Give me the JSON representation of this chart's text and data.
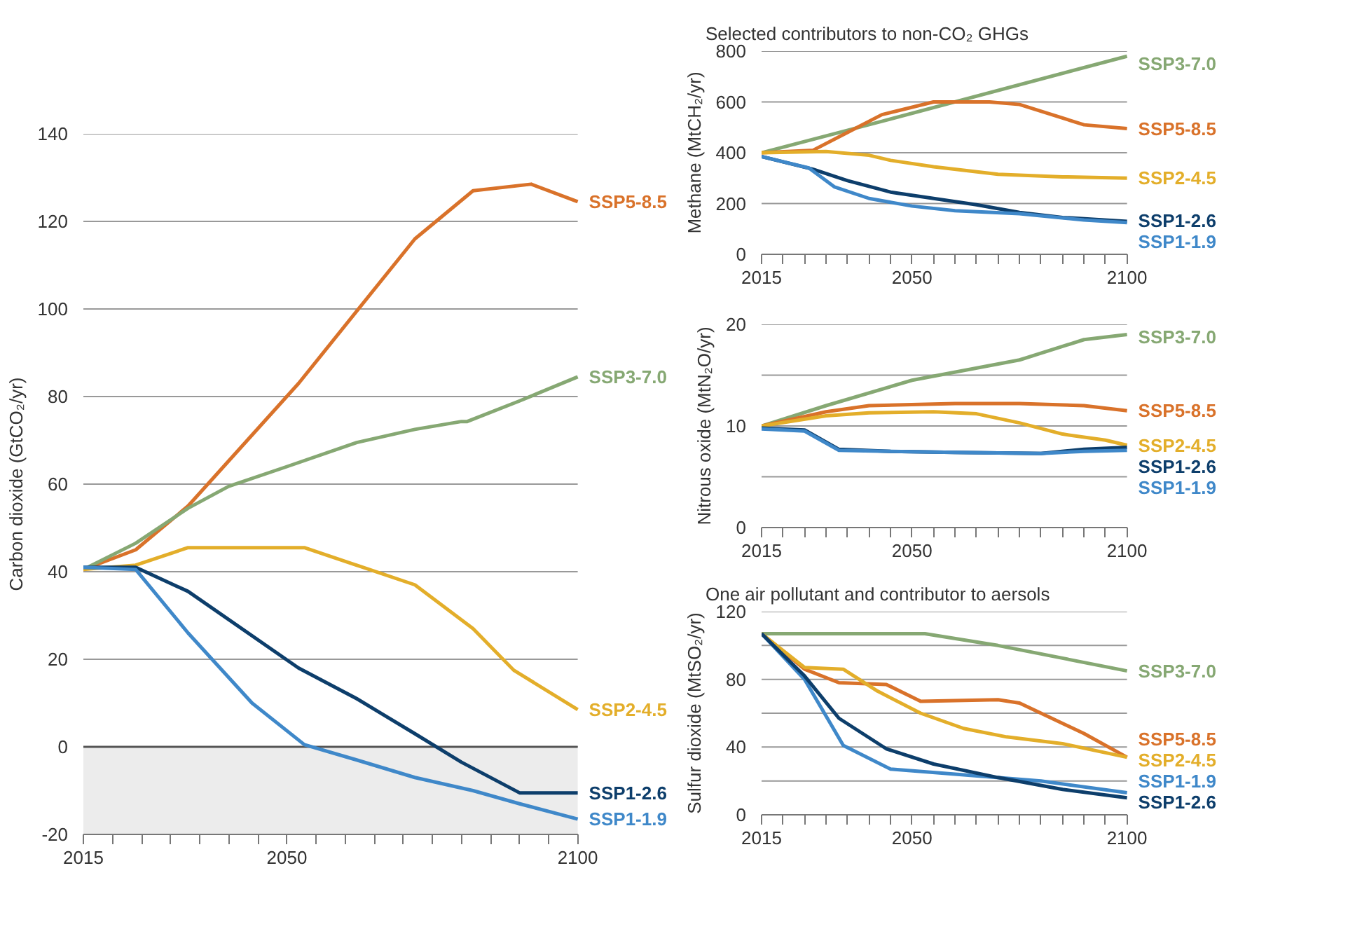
{
  "chart_data": [
    {
      "type": "line",
      "ylabel": "Carbon dioxide (GtCO₂/yr)",
      "xlim": [
        2015,
        2100
      ],
      "ylim": [
        -20,
        140
      ],
      "grid": "y",
      "legend": false,
      "xticks": [
        2015,
        {
          "value": 2020,
          "label": null
        },
        {
          "value": 2025,
          "label": null
        },
        {
          "value": 2030,
          "label": null
        },
        {
          "value": 2035,
          "label": null
        },
        {
          "value": 2040,
          "label": null
        },
        {
          "value": 2045,
          "label": null
        },
        2050,
        {
          "value": 2055,
          "label": null
        },
        {
          "value": 2060,
          "label": null
        },
        {
          "value": 2065,
          "label": null
        },
        {
          "value": 2070,
          "label": null
        },
        {
          "value": 2075,
          "label": null
        },
        {
          "value": 2080,
          "label": null
        },
        {
          "value": 2085,
          "label": null
        },
        {
          "value": 2090,
          "label": null
        },
        {
          "value": 2095,
          "label": null
        },
        2100
      ],
      "yticks": [
        -20,
        0,
        20,
        40,
        60,
        80,
        100,
        120,
        140
      ],
      "bands": [
        {
          "axis": "y",
          "from": -20,
          "to": 0,
          "color": "#ececec"
        }
      ],
      "ref_lines": [
        {
          "axis": "y",
          "value": 0,
          "color": "#555555"
        }
      ],
      "series": [
        {
          "name": "SSP5-8.5",
          "color": "#d9722a",
          "x": [
            2015,
            2024,
            2033,
            2052,
            2072,
            2082,
            2092,
            2100
          ],
          "values": [
            40.5,
            45,
            55,
            83,
            116,
            127,
            128.5,
            124.5
          ]
        },
        {
          "name": "SSP3-7.0",
          "color": "#86a873",
          "x": [
            2015,
            2024,
            2033,
            2040,
            2050,
            2062,
            2072,
            2080,
            2081,
            2090,
            2100
          ],
          "values": [
            40.5,
            46.5,
            54.5,
            59.5,
            64,
            69.5,
            72.5,
            74.3,
            74.3,
            79,
            84.5
          ]
        },
        {
          "name": "SSP2-4.5",
          "color": "#e3ae2a",
          "x": [
            2015,
            2024,
            2033,
            2053,
            2072,
            2082,
            2089,
            2100
          ],
          "values": [
            40.5,
            41.5,
            45.5,
            45.5,
            37,
            27,
            17.5,
            8.5
          ]
        },
        {
          "name": "SSP1-2.6",
          "color": "#0d3e6b",
          "x": [
            2015,
            2024,
            2033,
            2052,
            2062,
            2072,
            2080,
            2090,
            2100
          ],
          "values": [
            41,
            41,
            35.5,
            18,
            11,
            3,
            -3.5,
            -10.5,
            -10.5
          ]
        },
        {
          "name": "SSP1-1.9",
          "color": "#3f88c9",
          "x": [
            2015,
            2024,
            2033,
            2044,
            2053,
            2062,
            2072,
            2082,
            2090,
            2100
          ],
          "values": [
            41,
            40.5,
            26,
            10,
            0.5,
            -3,
            -7,
            -10,
            -13,
            -16.5
          ]
        }
      ]
    },
    {
      "type": "line",
      "title": "Selected contributors to non-CO₂ GHGs",
      "ylabel": "Methane (MtCH₂/yr)",
      "xlim": [
        2015,
        2100
      ],
      "ylim": [
        0,
        800
      ],
      "grid": "y",
      "legend": false,
      "xticks": [
        2015,
        {
          "value": 2020,
          "label": null
        },
        {
          "value": 2025,
          "label": null
        },
        {
          "value": 2030,
          "label": null
        },
        {
          "value": 2035,
          "label": null
        },
        {
          "value": 2040,
          "label": null
        },
        {
          "value": 2045,
          "label": null
        },
        2050,
        {
          "value": 2055,
          "label": null
        },
        {
          "value": 2060,
          "label": null
        },
        {
          "value": 2065,
          "label": null
        },
        {
          "value": 2070,
          "label": null
        },
        {
          "value": 2075,
          "label": null
        },
        {
          "value": 2080,
          "label": null
        },
        {
          "value": 2085,
          "label": null
        },
        {
          "value": 2090,
          "label": null
        },
        {
          "value": 2095,
          "label": null
        },
        2100
      ],
      "yticks": [
        0,
        200,
        400,
        600,
        800
      ],
      "series": [
        {
          "name": "SSP3-7.0",
          "color": "#86a873",
          "x": [
            2015,
            2043,
            2100
          ],
          "values": [
            400,
            524,
            780
          ]
        },
        {
          "name": "SSP5-8.5",
          "color": "#d9722a",
          "x": [
            2015,
            2027,
            2035,
            2043,
            2055,
            2068,
            2075,
            2090,
            2100
          ],
          "values": [
            400,
            410,
            480,
            550,
            600,
            600,
            590,
            510,
            495
          ]
        },
        {
          "name": "SSP2-4.5",
          "color": "#e3ae2a",
          "x": [
            2015,
            2030,
            2040,
            2045,
            2055,
            2070,
            2085,
            2100
          ],
          "values": [
            400,
            405,
            390,
            370,
            345,
            315,
            305,
            300
          ]
        },
        {
          "name": "SSP1-2.6",
          "color": "#0d3e6b",
          "x": [
            2015,
            2027,
            2035,
            2045,
            2055,
            2065,
            2075,
            2085,
            2100
          ],
          "values": [
            385,
            335,
            290,
            245,
            220,
            195,
            165,
            145,
            130
          ]
        },
        {
          "name": "SSP1-1.9",
          "color": "#3f88c9",
          "x": [
            2015,
            2026,
            2032,
            2040,
            2050,
            2060,
            2075,
            2090,
            2100
          ],
          "values": [
            385,
            340,
            265,
            220,
            190,
            172,
            160,
            135,
            125
          ]
        }
      ]
    },
    {
      "type": "line",
      "ylabel": "Nitrous oxide (MtN₂O/yr)",
      "xlim": [
        2015,
        2100
      ],
      "ylim": [
        0,
        20
      ],
      "grid": "y",
      "legend": false,
      "xticks": [
        2015,
        {
          "value": 2020,
          "label": null
        },
        {
          "value": 2025,
          "label": null
        },
        {
          "value": 2030,
          "label": null
        },
        {
          "value": 2035,
          "label": null
        },
        {
          "value": 2040,
          "label": null
        },
        {
          "value": 2045,
          "label": null
        },
        2050,
        {
          "value": 2055,
          "label": null
        },
        {
          "value": 2060,
          "label": null
        },
        {
          "value": 2065,
          "label": null
        },
        {
          "value": 2070,
          "label": null
        },
        {
          "value": 2075,
          "label": null
        },
        {
          "value": 2080,
          "label": null
        },
        {
          "value": 2085,
          "label": null
        },
        {
          "value": 2090,
          "label": null
        },
        {
          "value": 2095,
          "label": null
        },
        2100
      ],
      "yticks": [
        0,
        {
          "value": 5,
          "label": null
        },
        10,
        {
          "value": 15,
          "label": null
        },
        20
      ],
      "series": [
        {
          "name": "SSP3-7.0",
          "color": "#86a873",
          "x": [
            2015,
            2030,
            2050,
            2075,
            2090,
            2100
          ],
          "values": [
            10,
            12,
            14.5,
            16.5,
            18.5,
            19
          ]
        },
        {
          "name": "SSP5-8.5",
          "color": "#d9722a",
          "x": [
            2015,
            2030,
            2040,
            2060,
            2075,
            2090,
            2100
          ],
          "values": [
            10,
            11.4,
            12,
            12.2,
            12.2,
            12,
            11.5
          ]
        },
        {
          "name": "SSP2-4.5",
          "color": "#e3ae2a",
          "x": [
            2015,
            2030,
            2040,
            2055,
            2065,
            2075,
            2085,
            2095,
            2100
          ],
          "values": [
            10,
            11,
            11.3,
            11.4,
            11.2,
            10.3,
            9.2,
            8.6,
            8.1
          ]
        },
        {
          "name": "SSP1-2.6",
          "color": "#0d3e6b",
          "x": [
            2015,
            2025,
            2033,
            2045,
            2060,
            2080,
            2090,
            2100
          ],
          "values": [
            9.8,
            9.6,
            7.7,
            7.5,
            7.4,
            7.3,
            7.7,
            7.9
          ]
        },
        {
          "name": "SSP1-1.9",
          "color": "#3f88c9",
          "x": [
            2015,
            2025,
            2033,
            2045,
            2060,
            2080,
            2090,
            2100
          ],
          "values": [
            9.7,
            9.5,
            7.6,
            7.5,
            7.4,
            7.3,
            7.5,
            7.6
          ]
        }
      ]
    },
    {
      "type": "line",
      "title": "One air pollutant and contributor to aersols",
      "ylabel": "Sulfur dioxide (MtSO₂/yr)",
      "xlim": [
        2015,
        2100
      ],
      "ylim": [
        0,
        120
      ],
      "grid": "y",
      "legend": false,
      "xticks": [
        2015,
        {
          "value": 2020,
          "label": null
        },
        {
          "value": 2025,
          "label": null
        },
        {
          "value": 2030,
          "label": null
        },
        {
          "value": 2035,
          "label": null
        },
        {
          "value": 2040,
          "label": null
        },
        {
          "value": 2045,
          "label": null
        },
        2050,
        {
          "value": 2055,
          "label": null
        },
        {
          "value": 2060,
          "label": null
        },
        {
          "value": 2065,
          "label": null
        },
        {
          "value": 2070,
          "label": null
        },
        {
          "value": 2075,
          "label": null
        },
        {
          "value": 2080,
          "label": null
        },
        {
          "value": 2085,
          "label": null
        },
        {
          "value": 2090,
          "label": null
        },
        {
          "value": 2095,
          "label": null
        },
        2100
      ],
      "yticks": [
        0,
        {
          "value": 20,
          "label": null
        },
        40,
        {
          "value": 60,
          "label": null
        },
        80,
        {
          "value": 100,
          "label": null
        },
        120
      ],
      "series": [
        {
          "name": "SSP3-7.0",
          "color": "#86a873",
          "x": [
            2015,
            2053,
            2070,
            2100
          ],
          "values": [
            107,
            107,
            100,
            85
          ]
        },
        {
          "name": "SSP5-8.5",
          "color": "#d9722a",
          "x": [
            2015,
            2025,
            2033,
            2044,
            2052,
            2070,
            2075,
            2090,
            2100
          ],
          "values": [
            107,
            86,
            78,
            77,
            67,
            68,
            66,
            48,
            34
          ]
        },
        {
          "name": "SSP2-4.5",
          "color": "#e3ae2a",
          "x": [
            2015,
            2025,
            2034,
            2042,
            2052,
            2062,
            2072,
            2085,
            2100
          ],
          "values": [
            107,
            87,
            86,
            73,
            60,
            51,
            46,
            42,
            34
          ]
        },
        {
          "name": "SSP1-1.9",
          "color": "#3f88c9",
          "x": [
            2015,
            2025,
            2034,
            2045,
            2060,
            2080,
            2100
          ],
          "values": [
            107,
            80,
            41,
            27,
            24,
            20,
            13
          ]
        },
        {
          "name": "SSP1-2.6",
          "color": "#0d3e6b",
          "x": [
            2015,
            2025,
            2033,
            2044,
            2055,
            2070,
            2085,
            2100
          ],
          "values": [
            107,
            82,
            57,
            39,
            30,
            22,
            15,
            10
          ]
        }
      ]
    }
  ]
}
